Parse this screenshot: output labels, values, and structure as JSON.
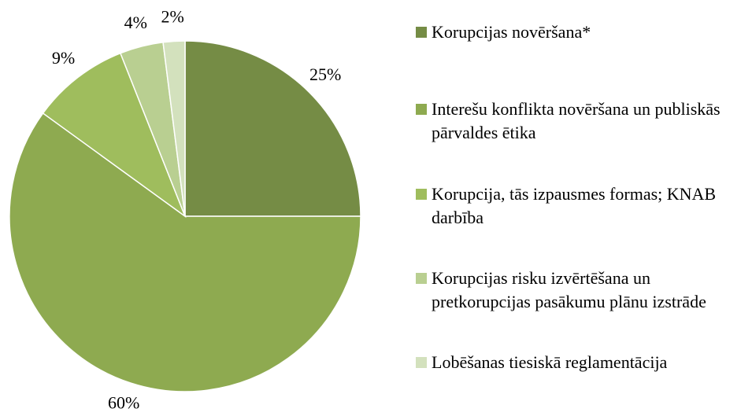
{
  "chart_data": {
    "type": "pie",
    "categories": [
      "Korupcijas novēršana*",
      "Interešu konflikta novēršana un publiskās pārvaldes ētika",
      "Korupcija, tās izpausmes formas; KNAB darbība",
      "Korupcijas risku izvērtēšana un pretkorupcijas pasākumu plānu izstrāde",
      "Lobēšanas tiesiskā reglamentācija"
    ],
    "values": [
      25,
      60,
      9,
      4,
      2
    ],
    "value_labels": [
      "25%",
      "60%",
      "9%",
      "4%",
      "2%"
    ],
    "colors": [
      "#758c45",
      "#8eaa50",
      "#9fbd5d",
      "#b9cf91",
      "#d3e1bd"
    ],
    "legend": "right"
  }
}
